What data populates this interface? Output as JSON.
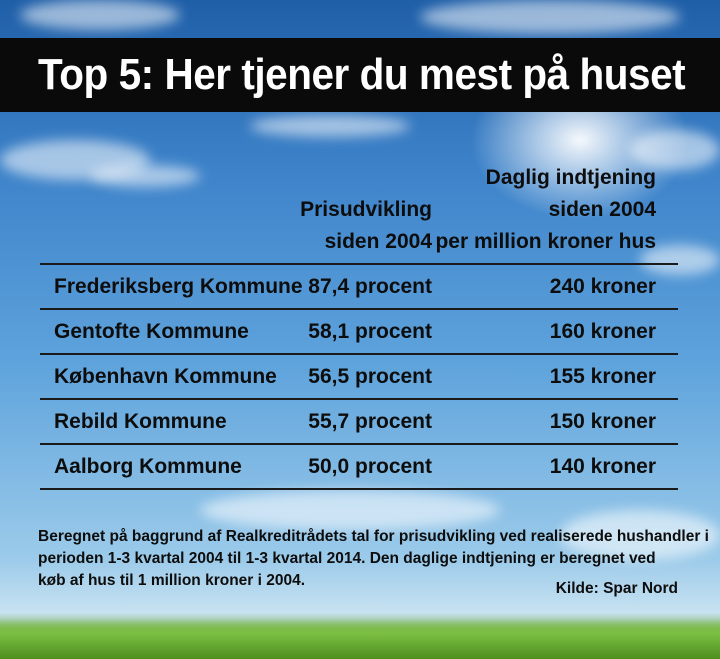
{
  "title": "Top 5: Her tjener du mest på huset",
  "headers": {
    "price_line1": "Prisudvikling",
    "price_line2": "siden 2004",
    "daily_line1": "Daglig indtjening",
    "daily_line2": "siden 2004",
    "daily_line3": "per million kroner hus"
  },
  "chart_data": {
    "type": "table",
    "title": "Top 5: Her tjener du mest på huset",
    "columns": [
      "",
      "Prisudvikling siden 2004",
      "Daglig indtjening siden 2004 per million kroner hus"
    ],
    "rows": [
      {
        "municipality": "Frederiksberg Kommune",
        "price_change": "87,4 procent",
        "daily_earning": "240 kroner"
      },
      {
        "municipality": "Gentofte Kommune",
        "price_change": "58,1 procent",
        "daily_earning": "160 kroner"
      },
      {
        "municipality": "København Kommune",
        "price_change": "56,5 procent",
        "daily_earning": "155 kroner"
      },
      {
        "municipality": "Rebild Kommune",
        "price_change": "55,7 procent",
        "daily_earning": "150 kroner"
      },
      {
        "municipality": "Aalborg Kommune",
        "price_change": "50,0 procent",
        "daily_earning": "140 kroner"
      }
    ]
  },
  "footnote": {
    "line1": "Beregnet på baggrund af Realkreditrådets tal for prisudvikling ved realiserede hushandler i",
    "line2": "perioden 1-3 kvartal 2004 til 1-3 kvartal 2014. Den daglige indtjening er beregnet ved",
    "line3": "køb af hus til 1 million kroner i 2004."
  },
  "source": "Kilde: Spar Nord"
}
